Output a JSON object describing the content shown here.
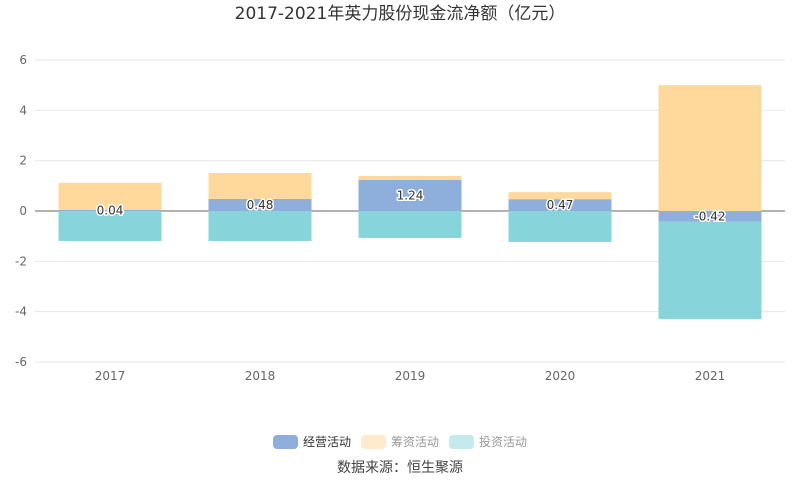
{
  "chart_data": {
    "type": "bar",
    "stacked": true,
    "title": "2017-2021年英力股份现金流净额（亿元）",
    "xlabel": "",
    "ylabel": "",
    "categories": [
      "2017",
      "2018",
      "2019",
      "2020",
      "2021"
    ],
    "ylim": [
      -6,
      6
    ],
    "yticks": [
      6,
      4,
      2,
      0,
      -2,
      -4,
      -6
    ],
    "grid": true,
    "legend_position": "bottom",
    "series": [
      {
        "name": "经营活动",
        "color": "#8eaedc",
        "legend_color": "#8eaedc",
        "values": [
          0.04,
          0.48,
          1.24,
          0.47,
          -0.42
        ],
        "labels": [
          "0.04",
          "0.48",
          "1.24",
          "0.47",
          "-0.42"
        ],
        "active": true
      },
      {
        "name": "筹资活动",
        "color": "#ffd99b",
        "legend_color": "#fdebcb",
        "values": [
          1.08,
          1.03,
          0.15,
          0.28,
          5.0
        ],
        "active": false
      },
      {
        "name": "投资活动",
        "color": "#87d5da",
        "legend_color": "#c3eaec",
        "values": [
          -1.19,
          -1.19,
          -1.07,
          -1.23,
          -3.87
        ],
        "active": false
      }
    ],
    "source": "数据来源：恒生聚源"
  }
}
